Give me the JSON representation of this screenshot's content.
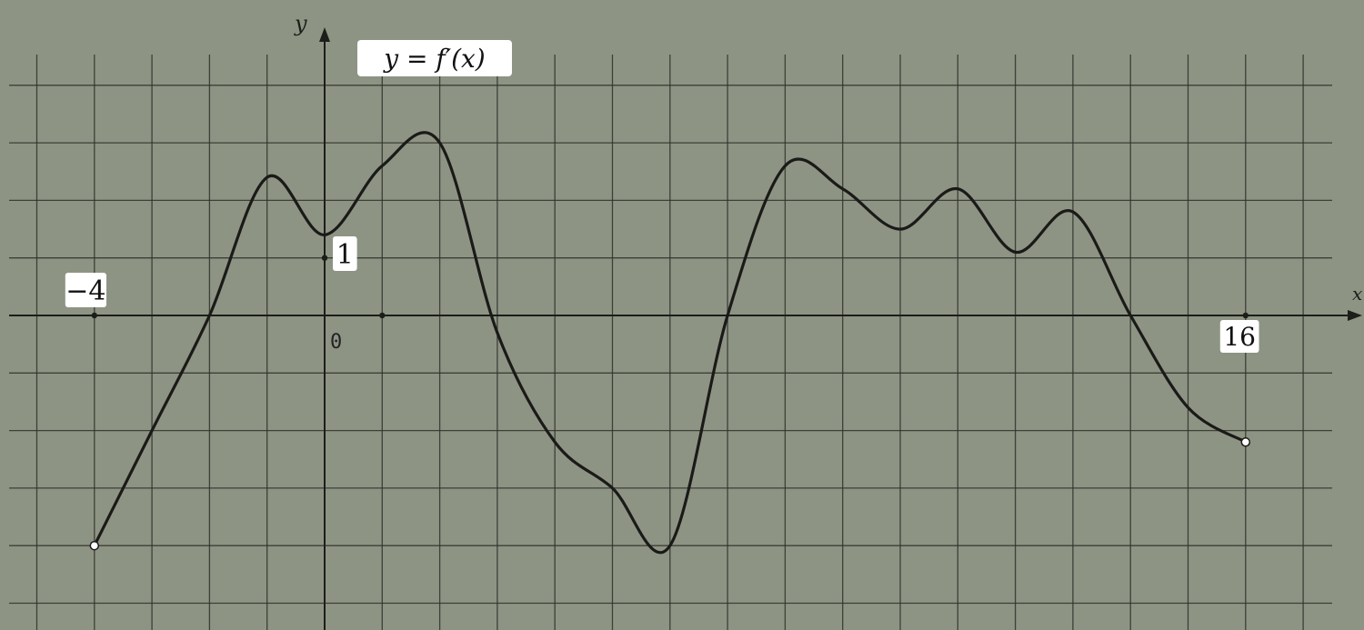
{
  "colors": {
    "background": "#8e9484",
    "grid": "#2e322a",
    "curve": "#1a1a18",
    "label_background": "#ffffff"
  },
  "chart_data": {
    "type": "line",
    "title": "y = f′(x)",
    "xlabel": "x",
    "ylabel": "y",
    "origin_label": "0",
    "xlim": [
      -5,
      17.5
    ],
    "ylim": [
      -5,
      4.5
    ],
    "grid": true,
    "tick_labels": [
      {
        "text": "−4",
        "x": -4,
        "y": 0
      },
      {
        "text": "1",
        "x": 0,
        "y": 1
      },
      {
        "text": "16",
        "x": 16,
        "y": 0
      }
    ],
    "series": [
      {
        "x": [
          -4,
          -3,
          -2,
          -1,
          0,
          1,
          2,
          3,
          4,
          5,
          6,
          7,
          8,
          9,
          10,
          11,
          12,
          13,
          14,
          15,
          16
        ],
        "y": [
          -4,
          -2,
          0,
          2.4,
          1.4,
          2.6,
          3.0,
          -0.3,
          -2.2,
          -3.0,
          -4.0,
          0,
          2.6,
          2.2,
          1.5,
          2.2,
          1.1,
          1.8,
          0,
          -1.6,
          -2.2
        ]
      }
    ],
    "endpoints": [
      {
        "x": -4,
        "y": -4
      },
      {
        "x": 16,
        "y": -2.2
      }
    ]
  }
}
